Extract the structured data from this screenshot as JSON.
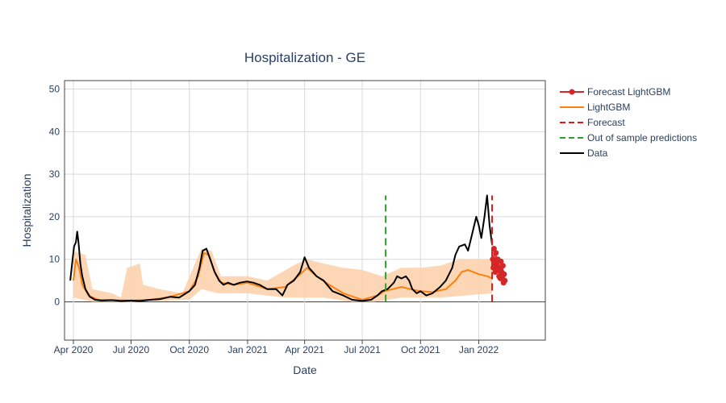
{
  "chart_data": {
    "type": "line",
    "title": "Hospitalization - GE",
    "xlabel": "Date",
    "ylabel": "Hospitalization",
    "xlim": [
      "2020-03-18",
      "2022-04-16"
    ],
    "ylim": [
      -9,
      52
    ],
    "yticks": [
      0,
      10,
      20,
      30,
      40,
      50
    ],
    "xticks": [
      {
        "date": "2020-04-01",
        "label": "Apr 2020"
      },
      {
        "date": "2020-07-01",
        "label": "Jul 2020"
      },
      {
        "date": "2020-10-01",
        "label": "Oct 2020"
      },
      {
        "date": "2021-01-01",
        "label": "Jan 2021"
      },
      {
        "date": "2021-04-01",
        "label": "Apr 2021"
      },
      {
        "date": "2021-07-01",
        "label": "Jul 2021"
      },
      {
        "date": "2021-10-01",
        "label": "Oct 2021"
      },
      {
        "date": "2022-01-01",
        "label": "Jan 2022"
      }
    ],
    "grid": true,
    "legend_position": "right",
    "colors": {
      "forecast_lightgbm": "#d62728",
      "lightgbm": "#ff7f0e",
      "interval": "#fdd0a8",
      "forecast_line": "#e31a1c",
      "oos_line": "#2ca02c",
      "data": "#000000",
      "grid": "#d9d9d9",
      "axis_text": "#2a3f5f"
    },
    "series": [
      {
        "name": "Data",
        "points": [
          [
            "2020-03-27",
            5
          ],
          [
            "2020-03-30",
            9
          ],
          [
            "2020-04-02",
            13
          ],
          [
            "2020-04-05",
            14
          ],
          [
            "2020-04-07",
            16.5
          ],
          [
            "2020-04-09",
            14
          ],
          [
            "2020-04-12",
            9
          ],
          [
            "2020-04-15",
            6
          ],
          [
            "2020-04-20",
            3
          ],
          [
            "2020-04-27",
            1.2
          ],
          [
            "2020-05-05",
            0.5
          ],
          [
            "2020-05-15",
            0.3
          ],
          [
            "2020-06-01",
            0.4
          ],
          [
            "2020-06-15",
            0.2
          ],
          [
            "2020-07-01",
            0.3
          ],
          [
            "2020-07-15",
            0.2
          ],
          [
            "2020-08-01",
            0.5
          ],
          [
            "2020-08-15",
            0.6
          ],
          [
            "2020-09-01",
            1.2
          ],
          [
            "2020-09-15",
            1
          ],
          [
            "2020-10-01",
            2.5
          ],
          [
            "2020-10-10",
            4
          ],
          [
            "2020-10-17",
            8
          ],
          [
            "2020-10-22",
            12
          ],
          [
            "2020-10-28",
            12.5
          ],
          [
            "2020-11-03",
            10
          ],
          [
            "2020-11-10",
            7
          ],
          [
            "2020-11-17",
            5
          ],
          [
            "2020-11-24",
            4
          ],
          [
            "2020-12-01",
            4.5
          ],
          [
            "2020-12-10",
            4
          ],
          [
            "2020-12-20",
            4.5
          ],
          [
            "2020-12-31",
            4.8
          ],
          [
            "2021-01-10",
            4.5
          ],
          [
            "2021-01-20",
            4
          ],
          [
            "2021-02-01",
            3
          ],
          [
            "2021-02-15",
            3
          ],
          [
            "2021-02-25",
            1.5
          ],
          [
            "2021-03-05",
            4
          ],
          [
            "2021-03-15",
            5
          ],
          [
            "2021-03-25",
            7
          ],
          [
            "2021-04-01",
            10.5
          ],
          [
            "2021-04-08",
            8
          ],
          [
            "2021-04-20",
            6
          ],
          [
            "2021-05-01",
            5
          ],
          [
            "2021-05-15",
            2.5
          ],
          [
            "2021-06-01",
            1.5
          ],
          [
            "2021-06-15",
            0.5
          ],
          [
            "2021-07-01",
            0.2
          ],
          [
            "2021-07-15",
            0.5
          ],
          [
            "2021-07-25",
            1.5
          ],
          [
            "2021-08-01",
            2.5
          ],
          [
            "2021-08-10",
            3
          ],
          [
            "2021-08-20",
            4.5
          ],
          [
            "2021-08-25",
            6
          ],
          [
            "2021-09-01",
            5.5
          ],
          [
            "2021-09-08",
            6
          ],
          [
            "2021-09-13",
            5
          ],
          [
            "2021-09-18",
            3
          ],
          [
            "2021-09-25",
            2
          ],
          [
            "2021-10-01",
            2.5
          ],
          [
            "2021-10-10",
            1.5
          ],
          [
            "2021-10-20",
            2
          ],
          [
            "2021-11-01",
            3.5
          ],
          [
            "2021-11-10",
            5
          ],
          [
            "2021-11-20",
            8
          ],
          [
            "2021-11-25",
            11
          ],
          [
            "2021-12-01",
            13
          ],
          [
            "2021-12-10",
            13.5
          ],
          [
            "2021-12-15",
            12
          ],
          [
            "2021-12-20",
            15
          ],
          [
            "2021-12-28",
            20
          ],
          [
            "2022-01-01",
            18
          ],
          [
            "2022-01-05",
            15
          ],
          [
            "2022-01-10",
            20
          ],
          [
            "2022-01-14",
            25
          ],
          [
            "2022-01-18",
            18
          ],
          [
            "2022-01-22",
            13.5
          ]
        ]
      },
      {
        "name": "LightGBM",
        "points": [
          [
            "2020-04-01",
            5
          ],
          [
            "2020-04-05",
            10
          ],
          [
            "2020-04-10",
            8
          ],
          [
            "2020-04-15",
            4
          ],
          [
            "2020-04-25",
            1.5
          ],
          [
            "2020-05-10",
            0.5
          ],
          [
            "2020-06-01",
            0.4
          ],
          [
            "2020-07-01",
            0.3
          ],
          [
            "2020-08-01",
            0.5
          ],
          [
            "2020-09-01",
            1.2
          ],
          [
            "2020-10-01",
            2.5
          ],
          [
            "2020-10-15",
            6
          ],
          [
            "2020-10-24",
            11.5
          ],
          [
            "2020-11-01",
            11
          ],
          [
            "2020-11-10",
            7
          ],
          [
            "2020-11-20",
            4.5
          ],
          [
            "2020-12-10",
            4
          ],
          [
            "2021-01-01",
            4.5
          ],
          [
            "2021-02-01",
            3
          ],
          [
            "2021-03-01",
            3.5
          ],
          [
            "2021-03-25",
            6.5
          ],
          [
            "2021-04-05",
            8
          ],
          [
            "2021-04-20",
            6
          ],
          [
            "2021-05-10",
            4
          ],
          [
            "2021-06-01",
            2
          ],
          [
            "2021-07-01",
            0.5
          ],
          [
            "2021-07-25",
            1.5
          ],
          [
            "2021-08-05",
            2.5
          ],
          [
            "2021-09-01",
            3.5
          ],
          [
            "2021-09-15",
            3
          ],
          [
            "2021-10-01",
            2.5
          ],
          [
            "2021-10-20",
            2.3
          ],
          [
            "2021-11-10",
            3
          ],
          [
            "2021-11-25",
            5
          ],
          [
            "2021-12-05",
            7
          ],
          [
            "2021-12-15",
            7.5
          ],
          [
            "2022-01-01",
            6.5
          ],
          [
            "2022-01-15",
            6
          ],
          [
            "2022-01-22",
            5.5
          ]
        ]
      },
      {
        "name": "Forecast LightGBM",
        "points": [
          [
            "2022-01-23",
            10
          ],
          [
            "2022-01-24",
            8
          ],
          [
            "2022-01-25",
            12.5
          ],
          [
            "2022-01-26",
            9
          ],
          [
            "2022-01-27",
            7
          ],
          [
            "2022-01-28",
            11.5
          ],
          [
            "2022-01-29",
            9
          ],
          [
            "2022-01-30",
            8.5
          ],
          [
            "2022-01-31",
            10
          ],
          [
            "2022-02-01",
            7.5
          ],
          [
            "2022-02-02",
            6
          ],
          [
            "2022-02-03",
            8
          ],
          [
            "2022-02-04",
            5.5
          ],
          [
            "2022-02-05",
            9.5
          ],
          [
            "2022-02-06",
            7
          ],
          [
            "2022-02-07",
            6
          ],
          [
            "2022-02-08",
            8.5
          ],
          [
            "2022-02-09",
            4.5
          ],
          [
            "2022-02-10",
            6.5
          ],
          [
            "2022-02-11",
            5
          ]
        ]
      }
    ],
    "interval": {
      "lower": [
        [
          "2020-04-01",
          1
        ],
        [
          "2020-05-01",
          0
        ],
        [
          "2020-07-01",
          0
        ],
        [
          "2020-10-01",
          0.5
        ],
        [
          "2020-10-20",
          3
        ],
        [
          "2020-11-15",
          2
        ],
        [
          "2021-01-01",
          2
        ],
        [
          "2021-03-01",
          1
        ],
        [
          "2021-05-01",
          1
        ],
        [
          "2021-06-15",
          0
        ],
        [
          "2021-07-20",
          0
        ],
        [
          "2021-09-01",
          1
        ],
        [
          "2021-11-01",
          1
        ],
        [
          "2022-01-22",
          2
        ]
      ],
      "upper": [
        [
          "2020-04-01",
          12
        ],
        [
          "2020-04-20",
          11
        ],
        [
          "2020-05-01",
          3
        ],
        [
          "2020-06-01",
          2
        ],
        [
          "2020-06-15",
          1
        ],
        [
          "2020-06-25",
          8
        ],
        [
          "2020-07-15",
          9
        ],
        [
          "2020-07-20",
          4
        ],
        [
          "2020-08-15",
          3
        ],
        [
          "2020-09-20",
          2
        ],
        [
          "2020-10-20",
          12.5
        ],
        [
          "2020-11-05",
          12
        ],
        [
          "2020-11-20",
          6
        ],
        [
          "2021-01-01",
          6
        ],
        [
          "2021-02-01",
          5
        ],
        [
          "2021-03-20",
          9
        ],
        [
          "2021-04-05",
          10
        ],
        [
          "2021-05-01",
          9
        ],
        [
          "2021-06-01",
          8
        ],
        [
          "2021-07-01",
          7.5
        ],
        [
          "2021-08-01",
          6
        ],
        [
          "2021-09-01",
          8
        ],
        [
          "2021-10-01",
          8
        ],
        [
          "2021-11-01",
          8.5
        ],
        [
          "2021-12-01",
          10
        ],
        [
          "2022-01-22",
          10
        ]
      ]
    },
    "vertical_lines": [
      {
        "name": "Out of sample predictions",
        "date": "2021-08-07",
        "y0": 0,
        "y1": 25
      },
      {
        "name": "Forecast",
        "date": "2022-01-22",
        "y0": 0,
        "y1": 25
      }
    ],
    "legend": [
      {
        "key": "forecast_lightgbm",
        "label": "Forecast LightGBM",
        "style": "line-marker"
      },
      {
        "key": "lightgbm",
        "label": "LightGBM",
        "style": "line"
      },
      {
        "key": "forecast_line",
        "label": "Forecast",
        "style": "dash"
      },
      {
        "key": "oos_line",
        "label": "Out of sample predictions",
        "style": "dash"
      },
      {
        "key": "data",
        "label": "Data",
        "style": "line"
      }
    ]
  }
}
